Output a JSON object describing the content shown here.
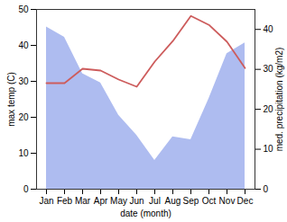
{
  "chart_data": {
    "type": "line",
    "x_label": "date (month)",
    "y_label": "max temp (C)",
    "y2_label": "med. precipitation (kg/m2)",
    "categories": [
      "Jan",
      "Feb",
      "Mar",
      "Apr",
      "May",
      "Jun",
      "Jul",
      "Aug",
      "Sep",
      "Oct",
      "Nov",
      "Dec"
    ],
    "ylim": [
      0,
      50
    ],
    "yticks": [
      0,
      10,
      20,
      30,
      40,
      50
    ],
    "y2lim": [
      0,
      45
    ],
    "y2ticks": [
      0,
      10,
      20,
      30,
      40
    ],
    "series": [
      {
        "type": "area",
        "axis": "y2",
        "color": "#aebcf0",
        "values": [
          40.6,
          38,
          28.9,
          26.6,
          18.5,
          13.5,
          7.2,
          13.1,
          12.4,
          22.6,
          33.9,
          36.6
        ]
      },
      {
        "type": "line",
        "axis": "y",
        "color": "#cd5c5c",
        "values": [
          29.5,
          29.5,
          33.5,
          33,
          30.5,
          28.5,
          35.5,
          41.2,
          48.2,
          45.7,
          41,
          33.7
        ]
      }
    ]
  }
}
